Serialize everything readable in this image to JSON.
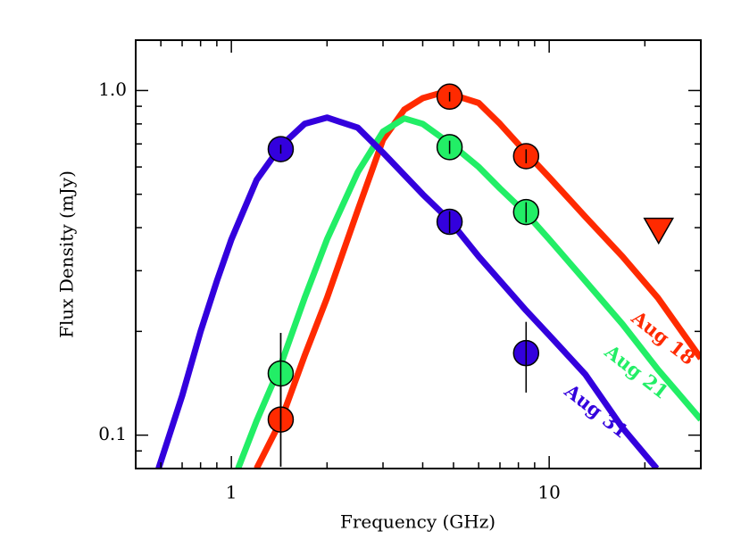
{
  "chart_data": {
    "type": "line",
    "xlabel": "Frequency (GHz)",
    "ylabel": "Flux Density (mJy)",
    "xscale": "log",
    "yscale": "log",
    "xlim": [
      0.5,
      30
    ],
    "ylim": [
      0.08,
      1.4
    ],
    "xticks": [
      1,
      10
    ],
    "yticks": [
      0.1,
      {
        "value": 1,
        "label": "1.0"
      }
    ],
    "xminorticks": [
      0.5,
      0.6,
      0.7,
      0.8,
      0.9,
      2,
      3,
      4,
      5,
      6,
      7,
      8,
      9,
      20,
      30
    ],
    "yminorticks": [
      0.08,
      0.09,
      0.2,
      0.3,
      0.4,
      0.5,
      0.6,
      0.7,
      0.8,
      0.9
    ],
    "series": [
      {
        "name": "Aug 18",
        "color": "#ff2a00",
        "x": [
          1.2,
          1.43,
          1.7,
          2,
          2.5,
          3,
          3.5,
          4,
          4.5,
          5,
          6,
          7,
          8.46,
          10,
          13,
          17,
          22,
          30
        ],
        "values": [
          0.08,
          0.11,
          0.17,
          0.25,
          0.45,
          0.72,
          0.88,
          0.95,
          0.98,
          0.97,
          0.92,
          0.8,
          0.66,
          0.56,
          0.43,
          0.33,
          0.25,
          0.167
        ]
      },
      {
        "name": "Aug 21",
        "color": "#22ee66",
        "x": [
          1.05,
          1.2,
          1.43,
          1.7,
          2,
          2.5,
          3,
          3.5,
          4,
          5,
          6,
          7,
          8.46,
          10,
          13,
          17,
          22,
          30
        ],
        "values": [
          0.08,
          0.11,
          0.16,
          0.25,
          0.37,
          0.58,
          0.76,
          0.83,
          0.8,
          0.69,
          0.6,
          0.52,
          0.44,
          0.37,
          0.28,
          0.21,
          0.155,
          0.111
        ]
      },
      {
        "name": "Aug 31",
        "color": "#3300dd",
        "x": [
          0.59,
          0.7,
          0.8,
          0.9,
          1,
          1.2,
          1.43,
          1.7,
          2,
          2.5,
          3,
          4,
          4.86,
          6,
          8.46,
          10,
          13,
          17,
          21.8
        ],
        "values": [
          0.08,
          0.13,
          0.2,
          0.28,
          0.37,
          0.55,
          0.69,
          0.8,
          0.835,
          0.78,
          0.66,
          0.5,
          0.42,
          0.33,
          0.23,
          0.195,
          0.15,
          0.105,
          0.08
        ]
      }
    ],
    "points": [
      {
        "color": "#ff2a00",
        "x": [
          1.43,
          4.86,
          8.46
        ],
        "values": [
          0.111,
          0.96,
          0.645
        ],
        "errors": [
          0.03,
          0.03,
          0.03
        ]
      },
      {
        "color": "#22ee66",
        "x": [
          1.43,
          4.86,
          8.46
        ],
        "values": [
          0.151,
          0.685,
          0.444
        ],
        "errors": [
          0.047,
          0.03,
          0.03
        ]
      },
      {
        "color": "#3300dd",
        "x": [
          1.43,
          4.86,
          8.46
        ],
        "values": [
          0.676,
          0.416,
          0.173
        ],
        "errors": [
          0.02,
          0.03,
          0.04
        ]
      }
    ],
    "upper_limits": {
      "color": "#ff2a00",
      "x": [
        22.1
      ],
      "values": [
        0.394
      ]
    }
  }
}
